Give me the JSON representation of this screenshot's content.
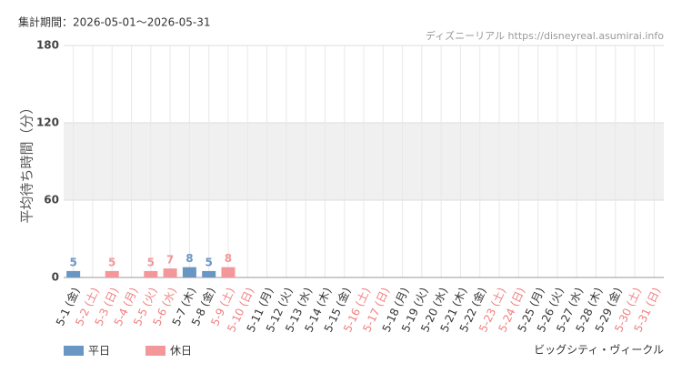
{
  "chart_data": {
    "type": "bar",
    "title": "集計期間：2026-05-01～2026-05-31",
    "source": "ディズニーリアル https://disneyreal.asumirai.info",
    "subtitle": "ビッグシティ・ヴィークル",
    "y_label": "平均待ち時間（分）",
    "categories": [
      "5-1 (金)",
      "5-2 (土)",
      "5-3 (日)",
      "5-4 (月)",
      "5-5 (火)",
      "5-6 (水)",
      "5-7 (木)",
      "5-8 (金)",
      "5-9 (土)",
      "5-10 (日)",
      "5-11 (月)",
      "5-12 (火)",
      "5-13 (水)",
      "5-14 (木)",
      "5-15 (金)",
      "5-16 (土)",
      "5-17 (日)",
      "5-18 (月)",
      "5-19 (火)",
      "5-20 (水)",
      "5-21 (木)",
      "5-22 (金)",
      "5-23 (土)",
      "5-24 (日)",
      "5-25 (月)",
      "5-26 (火)",
      "5-27 (水)",
      "5-28 (木)",
      "5-29 (金)",
      "5-30 (土)",
      "5-31 (日)"
    ],
    "category_colors": [
      "#333333",
      "#f08080",
      "#f08080",
      "#f08080",
      "#f08080",
      "#f08080",
      "#333333",
      "#333333",
      "#f08080",
      "#f08080",
      "#333333",
      "#333333",
      "#333333",
      "#333333",
      "#333333",
      "#f08080",
      "#f08080",
      "#333333",
      "#333333",
      "#333333",
      "#333333",
      "#333333",
      "#f08080",
      "#f08080",
      "#333333",
      "#333333",
      "#333333",
      "#333333",
      "#333333",
      "#f08080",
      "#f08080"
    ],
    "series": [
      {
        "name": "平日",
        "color": "#6a96c4",
        "values": [
          5,
          null,
          null,
          null,
          null,
          null,
          8,
          5,
          null,
          null,
          null,
          null,
          null,
          null,
          null,
          null,
          null,
          null,
          null,
          null,
          null,
          null,
          null,
          null,
          null,
          null,
          null,
          null,
          null,
          null,
          null
        ]
      },
      {
        "name": "休日",
        "color": "#f4979a",
        "values": [
          null,
          null,
          5,
          null,
          5,
          7,
          null,
          null,
          8,
          null,
          null,
          null,
          null,
          null,
          null,
          null,
          null,
          null,
          null,
          null,
          null,
          null,
          null,
          null,
          null,
          null,
          null,
          null,
          null,
          null,
          null
        ]
      }
    ],
    "ylim": [
      0,
      180
    ],
    "yticks": [
      0,
      60,
      120,
      180
    ],
    "bands": [
      {
        "from": 60,
        "to": 120,
        "color": "#f0f0f0"
      }
    ],
    "grid": true
  }
}
